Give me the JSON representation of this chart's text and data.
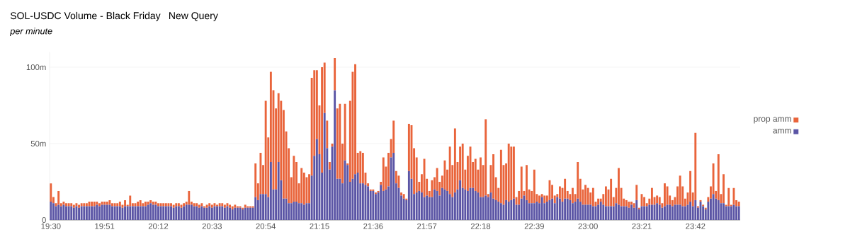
{
  "chart_data": {
    "type": "bar",
    "title": "SOL-USDC Volume - Black Friday",
    "subtitle": "per minute",
    "annotations": [
      "New Query"
    ],
    "categories": [
      "19:30",
      null,
      null,
      null,
      null,
      null,
      null,
      null,
      null,
      null,
      null,
      null,
      null,
      null,
      null,
      null,
      null,
      null,
      null,
      null,
      null,
      "19:51",
      null,
      null,
      null,
      null,
      null,
      null,
      null,
      null,
      null,
      null,
      null,
      null,
      null,
      null,
      null,
      null,
      null,
      null,
      null,
      null,
      "20:12",
      null,
      null,
      null,
      null,
      null,
      null,
      null,
      null,
      null,
      null,
      null,
      null,
      null,
      null,
      null,
      null,
      null,
      null,
      null,
      null,
      "20:33",
      null,
      null,
      null,
      null,
      null,
      null,
      null,
      null,
      null,
      null,
      null,
      null,
      null,
      null,
      null,
      null,
      null,
      null,
      null,
      null,
      "20:54",
      null,
      null,
      null,
      null,
      null,
      null,
      null,
      null,
      null,
      null,
      null,
      null,
      null,
      null,
      null,
      null,
      null,
      null,
      null,
      null,
      "21:15",
      null,
      null,
      null,
      null,
      null,
      null,
      null,
      null,
      null,
      null,
      null,
      null,
      null,
      null,
      null,
      null,
      null,
      null,
      null,
      null,
      "21:36",
      null,
      null,
      null,
      null,
      null,
      null,
      null,
      null,
      null,
      null,
      null,
      null,
      null,
      null,
      null,
      null,
      null,
      null,
      null,
      null,
      "21:57",
      null,
      null,
      null,
      null,
      null,
      null,
      null,
      null,
      null,
      null,
      null,
      null,
      null,
      null,
      null,
      null,
      null,
      null,
      null,
      null,
      "22:18",
      null,
      null,
      null,
      null,
      null,
      null,
      null,
      null,
      null,
      null,
      null,
      null,
      null,
      null,
      null,
      null,
      null,
      null,
      null,
      null,
      "22:39",
      null,
      null,
      null,
      null,
      null,
      null,
      null,
      null,
      null,
      null,
      null,
      null,
      null,
      null,
      null,
      null,
      null,
      null,
      null,
      null,
      "23:00",
      null,
      null,
      null,
      null,
      null,
      null,
      null,
      null,
      null,
      null,
      null,
      null,
      null,
      null,
      null,
      null,
      null,
      null,
      null,
      null,
      "23:21",
      null,
      null,
      null,
      null,
      null,
      null,
      null,
      null,
      null,
      null,
      null,
      null,
      null,
      null,
      null,
      null,
      null,
      null,
      null,
      null,
      "23:42",
      null,
      null,
      null,
      null,
      null,
      null,
      null,
      null,
      null,
      null,
      null,
      null,
      null,
      null,
      null,
      null,
      null
    ],
    "series": [
      {
        "name": "amm",
        "color": "#5b55a5",
        "values": [
          12,
          11,
          9,
          10,
          9,
          10,
          9,
          9,
          9,
          8,
          9,
          8,
          9,
          9,
          9,
          9,
          9,
          9,
          10,
          9,
          10,
          10,
          10,
          10,
          9,
          9,
          9,
          9,
          8,
          9,
          9,
          9,
          9,
          9,
          9,
          9,
          9,
          9,
          10,
          11,
          10,
          10,
          9,
          9,
          9,
          9,
          9,
          9,
          8,
          9,
          9,
          8,
          9,
          10,
          10,
          10,
          9,
          9,
          8,
          9,
          8,
          8,
          9,
          8,
          9,
          9,
          9,
          9,
          8,
          9,
          8,
          7,
          8,
          8,
          8,
          7,
          8,
          8,
          8,
          8,
          15,
          13,
          17,
          17,
          17,
          15,
          38,
          20,
          20,
          38,
          26,
          14,
          14,
          11,
          11,
          12,
          12,
          11,
          11,
          10,
          11,
          11,
          29,
          42,
          53,
          43,
          31,
          70,
          47,
          33,
          48,
          85,
          27,
          27,
          24,
          39,
          36,
          25,
          27,
          30,
          31,
          24,
          24,
          23,
          22,
          19,
          19,
          17,
          18,
          23,
          19,
          20,
          22,
          41,
          44,
          24,
          21,
          16,
          14,
          13,
          32,
          27,
          17,
          18,
          19,
          18,
          15,
          16,
          15,
          15,
          20,
          19,
          16,
          21,
          20,
          19,
          17,
          15,
          18,
          20,
          26,
          21,
          20,
          19,
          21,
          21,
          19,
          18,
          15,
          15,
          16,
          15,
          18,
          14,
          13,
          12,
          11,
          10,
          13,
          12,
          13,
          14,
          10,
          10,
          14,
          16,
          13,
          11,
          11,
          11,
          12,
          11,
          15,
          11,
          12,
          13,
          14,
          11,
          15,
          14,
          12,
          14,
          14,
          13,
          11,
          12,
          14,
          12,
          10,
          10,
          10,
          10,
          9,
          9,
          10,
          12,
          10,
          9,
          9,
          9,
          9,
          11,
          10,
          9,
          9,
          9,
          8,
          10,
          8,
          13,
          7,
          9,
          9,
          9,
          10,
          10,
          10,
          11,
          10,
          8,
          9,
          10,
          10,
          9,
          10,
          10,
          10,
          9,
          9,
          10,
          12,
          9,
          13,
          8,
          12,
          9,
          7,
          12,
          14,
          17,
          14,
          13,
          11,
          11,
          9,
          9,
          9,
          10,
          9,
          9
        ]
      },
      {
        "name": "prop amm",
        "color": "#e9643b",
        "values": [
          12,
          4,
          2,
          9,
          2,
          2,
          2,
          2,
          2,
          2,
          2,
          2,
          2,
          2,
          2,
          3,
          3,
          3,
          2,
          2,
          2,
          2,
          2,
          3,
          2,
          2,
          2,
          3,
          2,
          4,
          1,
          7,
          2,
          2,
          3,
          4,
          2,
          3,
          2,
          2,
          2,
          2,
          2,
          2,
          2,
          2,
          2,
          2,
          2,
          2,
          2,
          2,
          2,
          2,
          9,
          2,
          2,
          2,
          2,
          2,
          1,
          2,
          2,
          2,
          2,
          1,
          2,
          2,
          2,
          2,
          2,
          2,
          2,
          1,
          1,
          1,
          2,
          1,
          1,
          1,
          22,
          11,
          27,
          19,
          61,
          39,
          59,
          65,
          53,
          45,
          52,
          58,
          44,
          36,
          17,
          30,
          26,
          13,
          23,
          21,
          17,
          19,
          64,
          56,
          45,
          32,
          69,
          33,
          18,
          5,
          2,
          21,
          46,
          49,
          26,
          37,
          1,
          53,
          70,
          72,
          13,
          21,
          20,
          8,
          2,
          1,
          1,
          1,
          1,
          2,
          22,
          15,
          22,
          12,
          21,
          8,
          8,
          2,
          3,
          1,
          31,
          35,
          30,
          23,
          6,
          12,
          25,
          11,
          4,
          11,
          8,
          15,
          9,
          8,
          19,
          14,
          31,
          21,
          42,
          18,
          22,
          29,
          13,
          23,
          27,
          17,
          21,
          15,
          26,
          21,
          50,
          2,
          18,
          29,
          15,
          9,
          35,
          26,
          24,
          38,
          35,
          34,
          5,
          9,
          21,
          3,
          23,
          9,
          8,
          22,
          5,
          5,
          2,
          5,
          4,
          13,
          9,
          5,
          2,
          8,
          9,
          13,
          5,
          4,
          10,
          5,
          24,
          15,
          10,
          13,
          11,
          8,
          12,
          3,
          4,
          2,
          7,
          13,
          11,
          18,
          6,
          10,
          24,
          12,
          5,
          4,
          4,
          2,
          3,
          10,
          1,
          8,
          6,
          2,
          4,
          11,
          5,
          5,
          5,
          3,
          15,
          12,
          6,
          4,
          5,
          12,
          19,
          13,
          5,
          8,
          20,
          9,
          44,
          1,
          1,
          1,
          1,
          3,
          8,
          20,
          5,
          30,
          6,
          19,
          1,
          12,
          1,
          11,
          4,
          3
        ]
      }
    ],
    "stacked": true,
    "ylim": [
      0,
      110
    ],
    "yticks": [
      0,
      {
        "value": 50,
        "label": "50m"
      },
      {
        "value": 100,
        "label": "100m"
      }
    ],
    "grid": "y",
    "legend": "right"
  }
}
